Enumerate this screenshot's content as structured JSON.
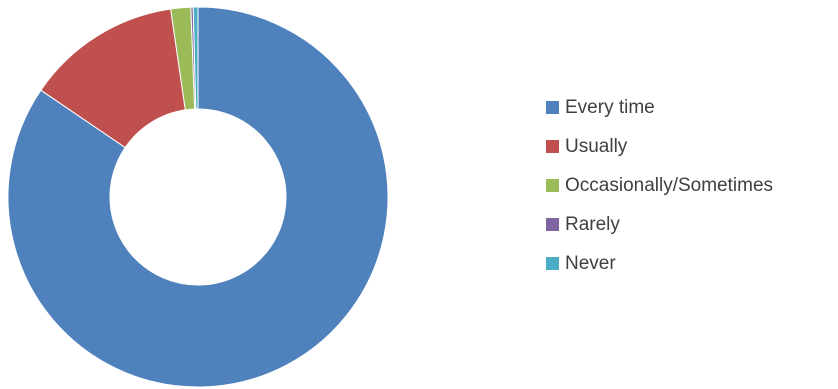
{
  "chart_data": {
    "type": "pie",
    "style": "donut",
    "title": "",
    "legend_position": "right",
    "series": [
      {
        "name": "Every time",
        "value": 84.5,
        "color": "#4F81BD"
      },
      {
        "name": "Usually",
        "value": 13.2,
        "color": "#C0504D"
      },
      {
        "name": "Occasionally/Sometimes",
        "value": 1.7,
        "color": "#9BBB59"
      },
      {
        "name": "Rarely",
        "value": 0.2,
        "color": "#8064A2"
      },
      {
        "name": "Never",
        "value": 0.4,
        "color": "#4BACC6"
      }
    ]
  }
}
